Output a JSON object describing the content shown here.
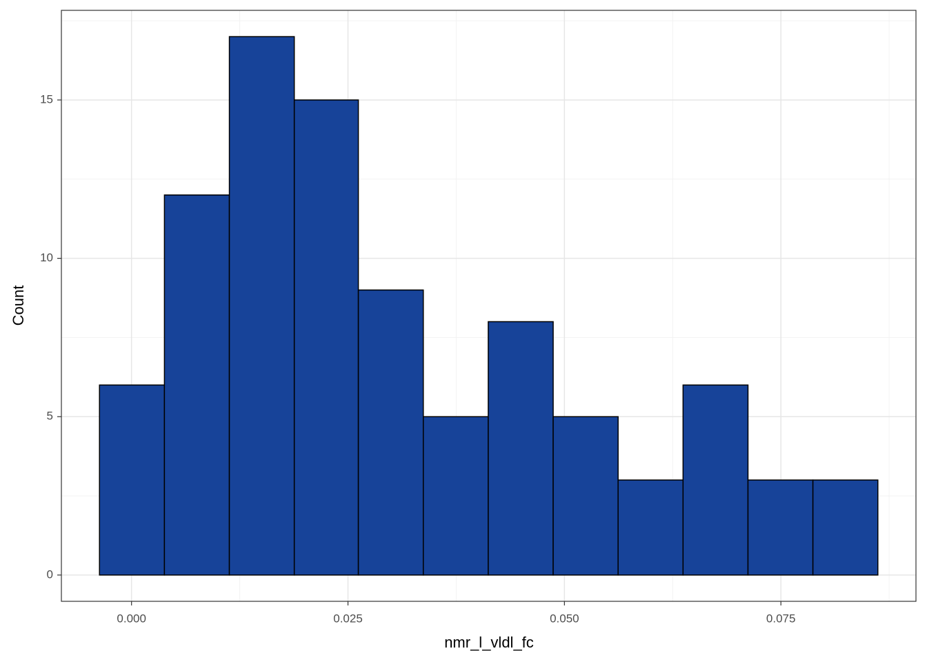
{
  "chart_data": {
    "type": "histogram",
    "x_label": "nmr_l_vldl_fc",
    "y_label": "Count",
    "bins": [
      -0.0037,
      0.0038,
      0.0113,
      0.0188,
      0.0262,
      0.0337,
      0.0412,
      0.0487,
      0.0562,
      0.0637,
      0.0712,
      0.0787,
      0.0862
    ],
    "values": [
      6,
      12,
      17,
      15,
      9,
      5,
      8,
      5,
      3,
      6,
      3,
      3
    ],
    "color": "#174399",
    "edge_color": "#000000",
    "xlim": [
      -0.0081,
      0.0906
    ],
    "ylim": [
      -0.83,
      17.83
    ],
    "xticks": [
      {
        "value": 0,
        "label": "0.000"
      },
      {
        "value": 0.025,
        "label": "0.025"
      },
      {
        "value": 0.05,
        "label": "0.050"
      },
      {
        "value": 0.075,
        "label": "0.075"
      }
    ],
    "yticks": [
      0,
      5,
      10,
      15
    ],
    "minor_xticks": [
      0.0125,
      0.0375,
      0.0625,
      0.0875
    ],
    "minor_yticks": [
      2.5,
      7.5,
      12.5,
      17.5
    ],
    "grid": true
  }
}
